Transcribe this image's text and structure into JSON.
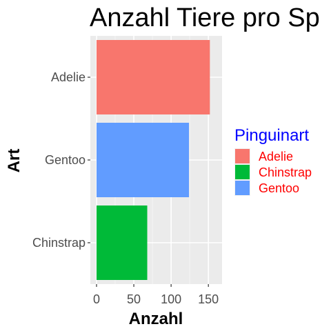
{
  "chart_data": {
    "type": "bar",
    "orientation": "horizontal",
    "title": "Anzahl Tiere pro Sp",
    "xlabel": "Anzahl",
    "ylabel": "Art",
    "categories": [
      "Adelie",
      "Gentoo",
      "Chinstrap"
    ],
    "values": [
      152,
      124,
      68
    ],
    "colors": [
      "#F8766D",
      "#619CFF",
      "#00BA38"
    ],
    "xlim": [
      0,
      160
    ],
    "xticks": [
      0,
      50,
      100,
      150
    ],
    "grid": true,
    "panel_background": "#EBEBEB",
    "legend": {
      "title": "Pinguinart",
      "title_color": "#0000FF",
      "label_color": "#FF0000",
      "position": "right",
      "entries": [
        {
          "label": "Adelie",
          "color": "#F8766D"
        },
        {
          "label": "Chinstrap",
          "color": "#00BA38"
        },
        {
          "label": "Gentoo",
          "color": "#619CFF"
        }
      ]
    }
  }
}
